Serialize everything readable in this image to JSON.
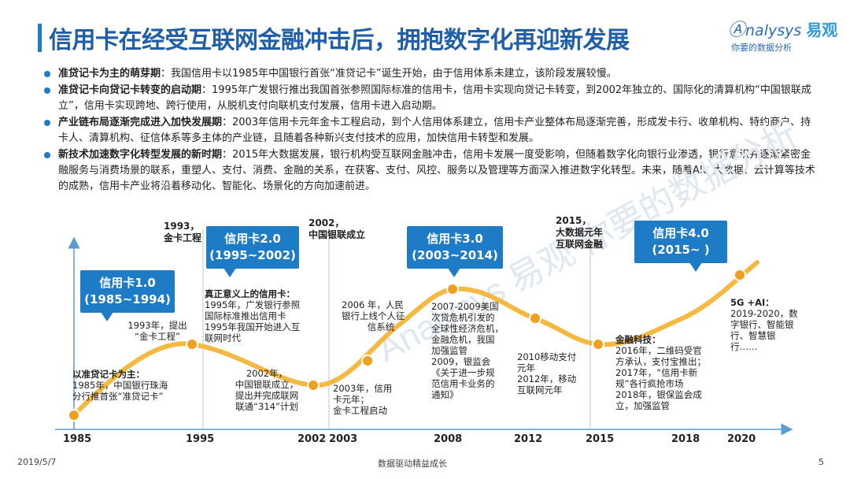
{
  "title": "信用卡在经受互联网金融冲击后，拥抱数字化再迎新发展",
  "logo": {
    "brand_prefix": "nalysys",
    "brand_cn": "易观",
    "tagline": "你要的数据分析"
  },
  "bullets": [
    {
      "head": "准贷记卡为主的萌芽期",
      "text": "：我国信用卡以1985年中国银行首张“准贷记卡”诞生开始，由于信用体系未建立，该阶段发展较慢。"
    },
    {
      "head": "准贷记卡向贷记卡转变的启动期",
      "text": "：1995年广发银行推出我国首张参照国际标准的信用卡，信用卡实现向贷记卡转变，到2002年独立的、国际化的清算机构“中国银联成立”，信用卡实现跨地、跨行使用，从脱机支付向联机支付发展，信用卡进入启动期。"
    },
    {
      "head": "产业链布局逐渐完成进入加快发展期",
      "text": "：2003年信用卡元年金卡工程启动，到个人信用体系建立，信用卡产业整体布局逐渐完善，形成发卡行、收单机构、特约商户、持卡人、清算机构、征信体系等多主体的产业链，且随着各种新兴支付技术的应用，加快信用卡转型和发展。"
    },
    {
      "head": "新技术加速数字化转型发展的新时期",
      "text": "：2015年大数据发展，银行机构受互联网金融冲击，信用卡发展一度受影响，但随着数字化向银行业渗透，银行意识并逐渐紧密金融服务与消费场景的联系，重塑人、支付、消费、金融的关系，在获客、支付、风控、服务以及管理等方面深入推进数字化转型。未来，随着AI、大数据、云计算等技术的成熟，信用卡产业将沿着移动化、智能化、场景化的方向加速前进。"
    }
  ],
  "years": [
    "1985",
    "1995",
    "2002",
    "2003",
    "2008",
    "2012",
    "2015",
    "2018",
    "2020"
  ],
  "phases": [
    {
      "title": "信用卡1.0",
      "range": "(1985~1994)"
    },
    {
      "title": "信用卡2.0",
      "range": "(1995~2002)"
    },
    {
      "title": "信用卡3.0",
      "range": "(2003~2014)"
    },
    {
      "title": "信用卡4.0",
      "range": "(2015~ )"
    }
  ],
  "events_top": [
    {
      "l1": "1993，",
      "l2": "金卡工程"
    },
    {
      "l1": "2002，",
      "l2": "中国银联成立"
    },
    {
      "l1": "2015，",
      "l2": "大数据元年",
      "l3": "互联网金融"
    }
  ],
  "labels": {
    "l1985_head": "以准贷记卡为主：",
    "l1985_body": [
      "1985年，中国银行珠海",
      "分行推首张“准贷记卡”"
    ],
    "l1993": [
      "1993年，提出",
      "“金卡工程”"
    ],
    "l1995_head": "真正意义上的信用卡：",
    "l1995_body": [
      "1995年，广发银行参照",
      "国际标准推出信用卡",
      "1995年我国开始进入互",
      "联网时代"
    ],
    "l2002": [
      "2002年，",
      "中国银联成立，",
      "提出并完成联网",
      "联通“314”计划"
    ],
    "l2003": [
      "2003年，信用",
      "卡元年；",
      "金卡工程启动"
    ],
    "l2006": [
      "2006 年，人民",
      "银行上线个人征",
      "信系统"
    ],
    "l2008": [
      "2007-2009美国",
      "次贷危机引发的",
      "全球性经济危机，",
      "金融危机，我国",
      "加强监管",
      "2009，银监会",
      "《关于进一步规",
      "范信用卡业务的",
      "通知》"
    ],
    "l2010": [
      "2010移动支付",
      "元年",
      "2012年，移动",
      "互联网元年"
    ],
    "l2016_head": "金融科技：",
    "l2016_body": [
      "2016年，二维码受官",
      "方承认，支付宝推出；",
      "2017年，“信用卡新",
      "规”各行疯抢市场",
      "2018年，银保监会成",
      "立，加强监管"
    ],
    "l5g_head": "5G +AI：",
    "l5g_body": [
      "2019-2020，数",
      "字银行、智能银",
      "行、智慧银",
      "行……"
    ]
  },
  "watermark": "Analysys 易观  你要的数据分析",
  "footer": {
    "date": "2019/5/7",
    "center": "数据驱动精益成长",
    "page": "5"
  },
  "colors": {
    "brand_blue": "#1e7bc6",
    "title_blue": "#1f5fa8",
    "curve": "#f5a623",
    "dot": "#f0a020",
    "axis": "#5b9bd5"
  }
}
